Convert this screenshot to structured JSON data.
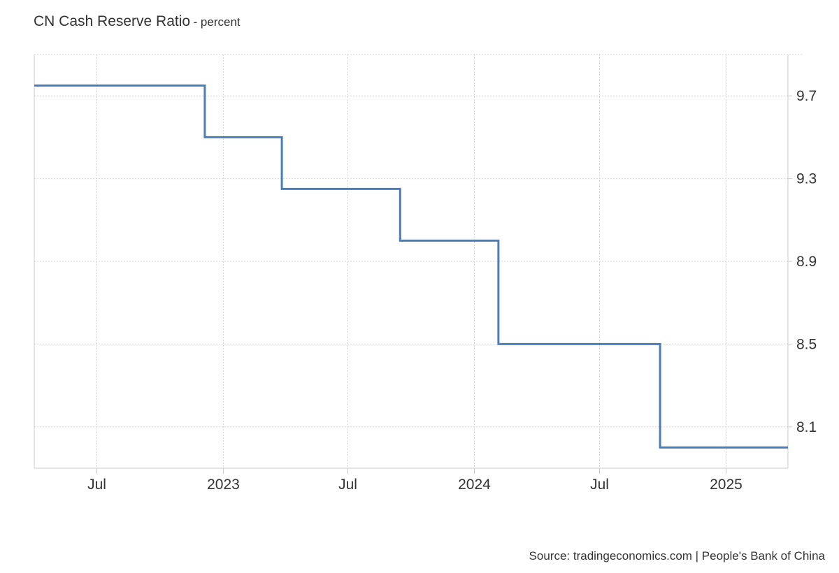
{
  "chart_data": {
    "type": "line",
    "step": true,
    "title": "CN Cash Reserve Ratio",
    "subtitle": "- percent",
    "x_ticks": [
      "Jul",
      "2023",
      "Jul",
      "2024",
      "Jul",
      "2025"
    ],
    "y_ticks": [
      "9.7",
      "9.3",
      "8.9",
      "8.5",
      "8.1"
    ],
    "ylim": [
      7.9,
      9.9
    ],
    "xlim": [
      "2022-04-01",
      "2025-04-01"
    ],
    "grid": true,
    "y_axis_side": "right",
    "series": [
      {
        "color": "#4a7ebb",
        "points": [
          {
            "x": "2022-04-01",
            "y": 9.75
          },
          {
            "x": "2022-12-05",
            "y": 9.5
          },
          {
            "x": "2023-03-27",
            "y": 9.25
          },
          {
            "x": "2023-09-15",
            "y": 9.0
          },
          {
            "x": "2024-02-05",
            "y": 8.5
          },
          {
            "x": "2024-09-27",
            "y": 8.0
          },
          {
            "x": "2025-04-01",
            "y": 8.0
          }
        ]
      }
    ],
    "source": "Source: tradingeconomics.com | People's Bank of China"
  }
}
